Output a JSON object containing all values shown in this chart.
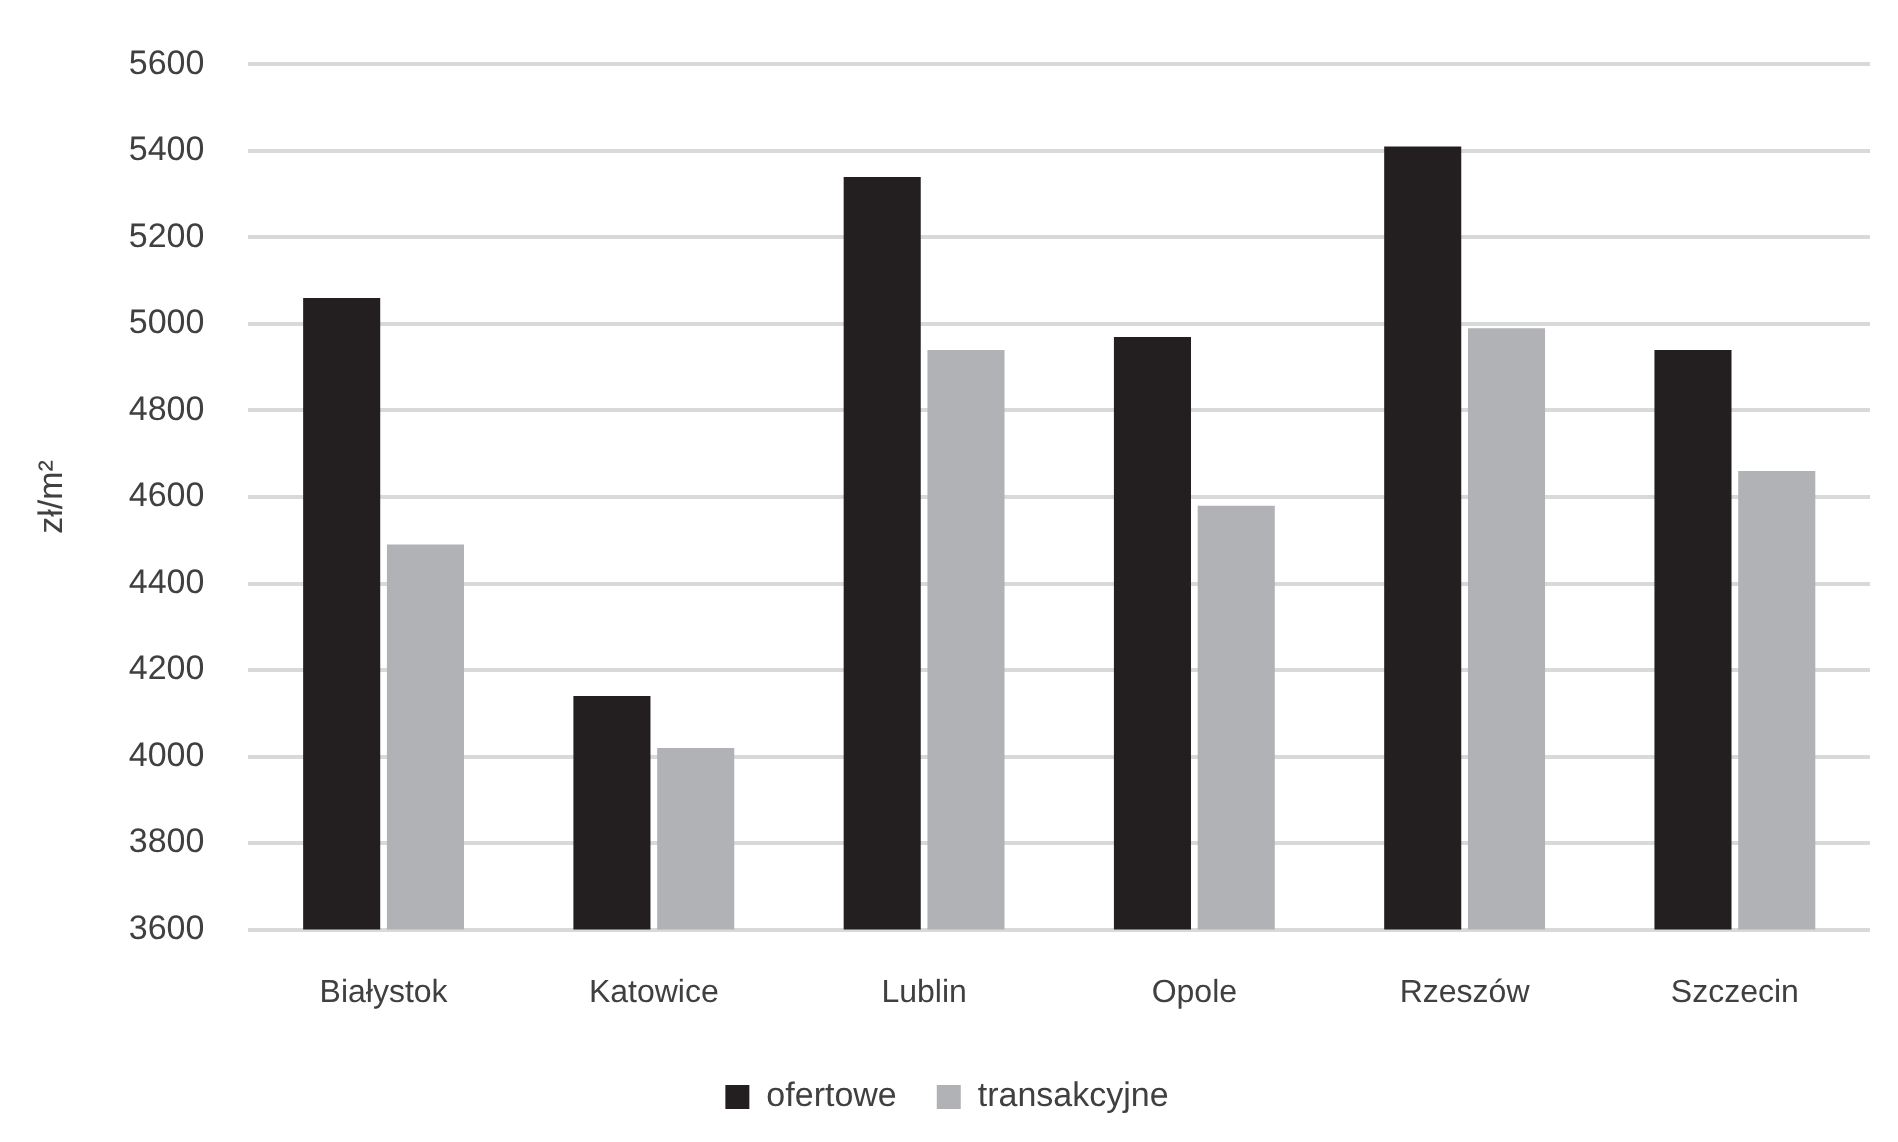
{
  "chart_data": {
    "type": "bar",
    "ylabel": "zł/m²",
    "categories": [
      "Białystok",
      "Katowice",
      "Lublin",
      "Opole",
      "Rzeszów",
      "Szczecin"
    ],
    "series": [
      {
        "name": "ofertowe",
        "color": "#231f20",
        "values": [
          5060,
          4140,
          5340,
          4970,
          5410,
          4940
        ]
      },
      {
        "name": "transakcyjne",
        "color": "#b1b2b5",
        "values": [
          4490,
          4020,
          4940,
          4580,
          4990,
          4660
        ]
      }
    ],
    "ylim": [
      3600,
      5600
    ],
    "yticks": [
      3600,
      3800,
      4000,
      4200,
      4400,
      4600,
      4800,
      5000,
      5200,
      5400,
      5600
    ],
    "grid": "y",
    "legend": "bottom"
  }
}
